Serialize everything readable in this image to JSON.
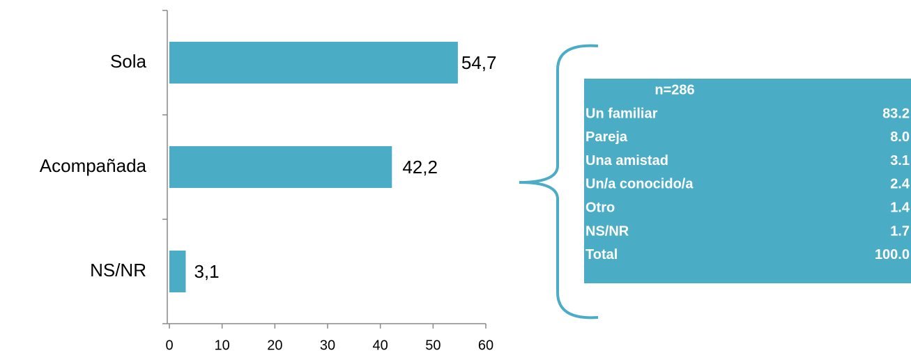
{
  "chart_data": {
    "type": "bar",
    "orientation": "horizontal",
    "categories": [
      "Sola",
      "Acompañada",
      "NS/NR"
    ],
    "values": [
      54.7,
      42.2,
      3.1
    ],
    "value_labels": [
      "54,7",
      "42,2",
      "3,1"
    ],
    "color": "#4bacc6",
    "xlim": [
      0,
      60
    ],
    "xticks": [
      0,
      10,
      20,
      30,
      40,
      50,
      60
    ]
  },
  "table": {
    "title": "n=286",
    "rows": [
      [
        "Un familiar",
        "83.2"
      ],
      [
        "Pareja",
        "8.0"
      ],
      [
        "Una amistad",
        "3.1"
      ],
      [
        "Un/a conocido/a",
        "2.4"
      ],
      [
        "Otro",
        "1.4"
      ],
      [
        "NS/NR",
        "1.7"
      ],
      [
        "Total",
        "100.0"
      ]
    ]
  }
}
